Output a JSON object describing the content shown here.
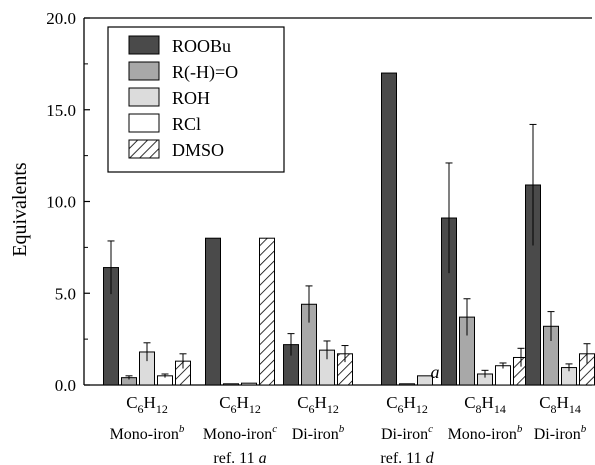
{
  "chart_data": {
    "type": "bar",
    "ylabel": "Equivalents",
    "ylim": [
      0,
      20
    ],
    "yticks": [
      "0.0",
      "5.0",
      "10.0",
      "15.0",
      "20.0"
    ],
    "grid": false,
    "legend_position": "top-left",
    "series": [
      {
        "name": "ROOBu",
        "key": "ROOBu",
        "color": "#4a4a4a",
        "pattern": "solid"
      },
      {
        "name": "R(-H)=O",
        "key": "ketone",
        "color": "#a8a8a8",
        "pattern": "solid"
      },
      {
        "name": "ROH",
        "key": "ROH",
        "color": "#dcdcdc",
        "pattern": "solid"
      },
      {
        "name": "RCl",
        "key": "RCl",
        "color": "#ffffff",
        "pattern": "solid"
      },
      {
        "name": "DMSO",
        "key": "DMSO",
        "color": "#ffffff",
        "pattern": "hatch"
      }
    ],
    "groups": [
      {
        "substrate": {
          "base": "C",
          "sub1": "6",
          "mid": "H",
          "sub2": "12"
        },
        "line2": {
          "text": "Mono-iron",
          "sup": "b"
        },
        "line3": null,
        "bars": [
          {
            "series": 0,
            "value": 6.4,
            "err": 1.45
          },
          {
            "series": 1,
            "value": 0.4,
            "err": 0.1
          },
          {
            "series": 2,
            "value": 1.8,
            "err": 0.5
          },
          {
            "series": 3,
            "value": 0.5,
            "err": 0.1
          },
          {
            "series": 4,
            "value": 1.3,
            "err": 0.4
          }
        ]
      },
      {
        "substrate": {
          "base": "C",
          "sub1": "6",
          "mid": "H",
          "sub2": "12"
        },
        "line2": {
          "text": "Mono-iron",
          "sup": "c"
        },
        "line3": {
          "text": "ref. 11",
          "italic": "a"
        },
        "bars": [
          {
            "series": 0,
            "value": 8.0
          },
          {
            "series": 1,
            "value": 0.05
          },
          {
            "series": 2,
            "value": 0.1
          },
          {
            "series": 4,
            "value": 8.0
          }
        ]
      },
      {
        "substrate": {
          "base": "C",
          "sub1": "6",
          "mid": "H",
          "sub2": "12"
        },
        "line2": {
          "text": "Di-iron",
          "sup": "b"
        },
        "line3": null,
        "bars": [
          {
            "series": 0,
            "value": 2.2,
            "err": 0.6
          },
          {
            "series": 1,
            "value": 4.4,
            "err": 1.0
          },
          {
            "series": 2,
            "value": 1.9,
            "err": 0.5
          },
          {
            "series": 4,
            "value": 1.7,
            "err": 0.45
          }
        ]
      },
      {
        "substrate": {
          "base": "C",
          "sub1": "6",
          "mid": "H",
          "sub2": "12"
        },
        "line2": {
          "text": "Di-iron",
          "sup": "c"
        },
        "line3": {
          "text": "ref. 11",
          "italic": "d"
        },
        "bars": [
          {
            "series": 0,
            "value": 17.0
          },
          {
            "series": 1,
            "value": 0.05
          },
          {
            "series": 2,
            "value": 0.5
          }
        ],
        "annotation": "a"
      },
      {
        "substrate": {
          "base": "C",
          "sub1": "8",
          "mid": "H",
          "sub2": "14"
        },
        "line2": {
          "text": "Mono-iron",
          "sup": "b"
        },
        "line3": null,
        "bars": [
          {
            "series": 0,
            "value": 9.1,
            "err": 3.0
          },
          {
            "series": 1,
            "value": 3.7,
            "err": 1.0
          },
          {
            "series": 2,
            "value": 0.6,
            "err": 0.2
          },
          {
            "series": 3,
            "value": 1.05,
            "err": 0.15
          },
          {
            "series": 4,
            "value": 1.5,
            "err": 0.5
          }
        ]
      },
      {
        "substrate": {
          "base": "C",
          "sub1": "8",
          "mid": "H",
          "sub2": "14"
        },
        "line2": {
          "text": "Di-iron",
          "sup": "b"
        },
        "line3": null,
        "bars": [
          {
            "series": 0,
            "value": 10.9,
            "err": 3.3
          },
          {
            "series": 1,
            "value": 3.2,
            "err": 0.8
          },
          {
            "series": 2,
            "value": 0.95,
            "err": 0.2
          },
          {
            "series": 4,
            "value": 1.7,
            "err": 0.55
          }
        ]
      }
    ]
  }
}
